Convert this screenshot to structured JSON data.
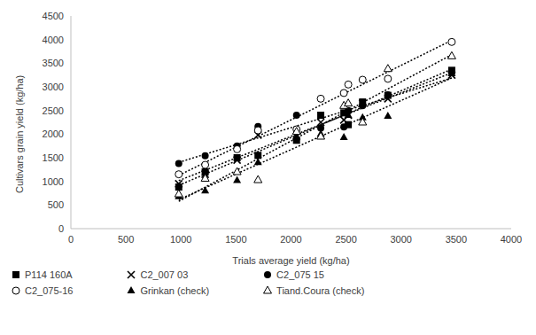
{
  "chart_data": {
    "type": "scatter",
    "x_label": "Trials average yield (kg/ha)",
    "y_label": "Cultivars grain yield (kg/ha)",
    "x": [
      980,
      1220,
      1510,
      1700,
      2050,
      2270,
      2480,
      2520,
      2650,
      2880,
      3460
    ],
    "xlim": [
      0,
      4000
    ],
    "xticks": [
      0,
      500,
      1000,
      1500,
      2000,
      2500,
      3000,
      3500,
      4000
    ],
    "ylim": [
      0,
      4500
    ],
    "yticks": [
      0,
      500,
      1000,
      1500,
      2000,
      2500,
      3000,
      3500,
      4000,
      4500
    ],
    "grid": false,
    "legend": "bottom",
    "series": [
      {
        "name": "P114 160A",
        "color": "#000000",
        "marker": "square",
        "line_style": "dotted",
        "values": [
          880,
          1200,
          1500,
          1550,
          1870,
          2400,
          2450,
          2200,
          2680,
          2820,
          3350
        ]
      },
      {
        "name": "C2_007 03",
        "color": "#000000",
        "marker": "x",
        "line_style": "dotted",
        "values": [
          950,
          1150,
          1450,
          1980,
          1950,
          2250,
          2300,
          2400,
          2650,
          2750,
          3250
        ]
      },
      {
        "name": "C2_075 15",
        "color": "#000000",
        "marker": "circle",
        "line_style": "dotted",
        "values": [
          1380,
          1540,
          1750,
          2160,
          2400,
          2130,
          2150,
          2500,
          2600,
          2830,
          3300
        ]
      },
      {
        "name": "C2_075-16",
        "color": "#000000",
        "marker": "open_circle",
        "line_style": "dotted",
        "values": [
          1150,
          1350,
          1680,
          2080,
          2100,
          2750,
          2870,
          3050,
          3150,
          3170,
          3950
        ]
      },
      {
        "name": "Grinkan (check)",
        "color": "#000000",
        "marker": "triangle",
        "line_style": "dotted",
        "values": [
          680,
          800,
          1020,
          1400,
          1950,
          2000,
          1930,
          2400,
          2350,
          2380,
          3280
        ]
      },
      {
        "name": "Tiand.Coura (check)",
        "color": "#000000",
        "marker": "open_triangle",
        "line_style": "dotted",
        "values": [
          730,
          1060,
          1200,
          1030,
          2050,
          1950,
          2600,
          2650,
          2250,
          3380,
          3650
        ]
      }
    ]
  }
}
